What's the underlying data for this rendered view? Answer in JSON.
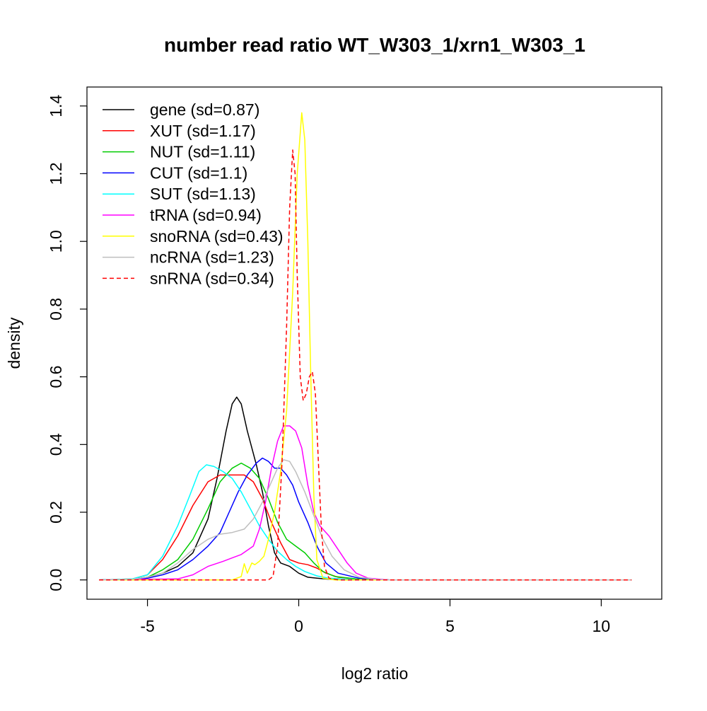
{
  "chart_data": {
    "type": "line",
    "title": "number read ratio WT_W303_1/xrn1_W303_1",
    "xlabel": "log2 ratio",
    "ylabel": "density",
    "xlim": [
      -7,
      12
    ],
    "ylim": [
      -0.057,
      1.456
    ],
    "x_ticks": [
      -5,
      0,
      5,
      10
    ],
    "x_tick_labels": [
      "-5",
      "0",
      "5",
      "10"
    ],
    "y_ticks": [
      0.0,
      0.2,
      0.4,
      0.6,
      0.8,
      1.0,
      1.2,
      1.4
    ],
    "y_tick_labels": [
      "0.0",
      "0.2",
      "0.4",
      "0.6",
      "0.8",
      "1.0",
      "1.2",
      "1.4"
    ],
    "grid": false,
    "legend_position": "top-left",
    "series": [
      {
        "name": "gene (sd=0.87)",
        "color": "#000000",
        "dash": "solid",
        "points": [
          [
            -6.6,
            0
          ],
          [
            -5.5,
            0.002
          ],
          [
            -5,
            0.008
          ],
          [
            -4.5,
            0.02
          ],
          [
            -4,
            0.04
          ],
          [
            -3.5,
            0.08
          ],
          [
            -3,
            0.18
          ],
          [
            -2.7,
            0.3
          ],
          [
            -2.4,
            0.44
          ],
          [
            -2.2,
            0.52
          ],
          [
            -2.05,
            0.54
          ],
          [
            -1.9,
            0.52
          ],
          [
            -1.7,
            0.44
          ],
          [
            -1.4,
            0.34
          ],
          [
            -1.2,
            0.26
          ],
          [
            -1,
            0.16
          ],
          [
            -0.8,
            0.08
          ],
          [
            -0.6,
            0.05
          ],
          [
            -0.3,
            0.04
          ],
          [
            0,
            0.02
          ],
          [
            0.3,
            0.008
          ],
          [
            0.6,
            0.005
          ],
          [
            1,
            0.002
          ],
          [
            1.5,
            0
          ],
          [
            11,
            0
          ]
        ]
      },
      {
        "name": "XUT (sd=1.17)",
        "color": "#ff0000",
        "dash": "solid",
        "points": [
          [
            -6.6,
            0
          ],
          [
            -5.5,
            0.003
          ],
          [
            -5,
            0.015
          ],
          [
            -4.5,
            0.06
          ],
          [
            -4,
            0.13
          ],
          [
            -3.5,
            0.22
          ],
          [
            -3,
            0.29
          ],
          [
            -2.6,
            0.31
          ],
          [
            -2.2,
            0.31
          ],
          [
            -1.8,
            0.31
          ],
          [
            -1.5,
            0.29
          ],
          [
            -1.2,
            0.24
          ],
          [
            -0.9,
            0.17
          ],
          [
            -0.6,
            0.11
          ],
          [
            -0.3,
            0.06
          ],
          [
            0,
            0.05
          ],
          [
            0.3,
            0.045
          ],
          [
            0.6,
            0.035
          ],
          [
            0.9,
            0.02
          ],
          [
            1.3,
            0.008
          ],
          [
            2,
            0.002
          ],
          [
            3,
            0
          ],
          [
            11,
            0
          ]
        ]
      },
      {
        "name": "NUT (sd=1.11)",
        "color": "#00cc00",
        "dash": "solid",
        "points": [
          [
            -6.6,
            0
          ],
          [
            -5.5,
            0.002
          ],
          [
            -5,
            0.008
          ],
          [
            -4.5,
            0.03
          ],
          [
            -4,
            0.06
          ],
          [
            -3.5,
            0.12
          ],
          [
            -3,
            0.21
          ],
          [
            -2.6,
            0.29
          ],
          [
            -2.2,
            0.33
          ],
          [
            -1.9,
            0.345
          ],
          [
            -1.6,
            0.33
          ],
          [
            -1.3,
            0.3
          ],
          [
            -1,
            0.24
          ],
          [
            -0.7,
            0.17
          ],
          [
            -0.4,
            0.12
          ],
          [
            -0.1,
            0.1
          ],
          [
            0.2,
            0.08
          ],
          [
            0.5,
            0.05
          ],
          [
            0.8,
            0.025
          ],
          [
            1.2,
            0.01
          ],
          [
            2,
            0.002
          ],
          [
            3,
            0
          ],
          [
            11,
            0
          ]
        ]
      },
      {
        "name": "CUT (sd=1.1)",
        "color": "#0000ff",
        "dash": "solid",
        "points": [
          [
            -6.6,
            0
          ],
          [
            -5.5,
            0.002
          ],
          [
            -5,
            0.005
          ],
          [
            -4.5,
            0.015
          ],
          [
            -4,
            0.03
          ],
          [
            -3.5,
            0.06
          ],
          [
            -3,
            0.1
          ],
          [
            -2.6,
            0.14
          ],
          [
            -2.3,
            0.2
          ],
          [
            -2,
            0.26
          ],
          [
            -1.7,
            0.31
          ],
          [
            -1.4,
            0.345
          ],
          [
            -1.2,
            0.36
          ],
          [
            -1,
            0.35
          ],
          [
            -0.8,
            0.33
          ],
          [
            -0.6,
            0.33
          ],
          [
            -0.4,
            0.31
          ],
          [
            -0.2,
            0.28
          ],
          [
            0,
            0.23
          ],
          [
            0.3,
            0.17
          ],
          [
            0.6,
            0.1
          ],
          [
            0.9,
            0.05
          ],
          [
            1.3,
            0.02
          ],
          [
            2,
            0.005
          ],
          [
            3,
            0
          ],
          [
            11,
            0
          ]
        ]
      },
      {
        "name": "SUT (sd=1.13)",
        "color": "#00ffff",
        "dash": "solid",
        "points": [
          [
            -6.6,
            0
          ],
          [
            -5.5,
            0.003
          ],
          [
            -5,
            0.015
          ],
          [
            -4.5,
            0.07
          ],
          [
            -4,
            0.16
          ],
          [
            -3.6,
            0.25
          ],
          [
            -3.3,
            0.32
          ],
          [
            -3.05,
            0.34
          ],
          [
            -2.8,
            0.335
          ],
          [
            -2.5,
            0.32
          ],
          [
            -2.2,
            0.3
          ],
          [
            -1.9,
            0.26
          ],
          [
            -1.6,
            0.21
          ],
          [
            -1.3,
            0.16
          ],
          [
            -1,
            0.12
          ],
          [
            -0.7,
            0.085
          ],
          [
            -0.4,
            0.06
          ],
          [
            -0.1,
            0.04
          ],
          [
            0.2,
            0.025
          ],
          [
            0.6,
            0.012
          ],
          [
            1,
            0.005
          ],
          [
            2,
            0
          ],
          [
            11,
            0
          ]
        ]
      },
      {
        "name": "tRNA (sd=0.94)",
        "color": "#ff00ff",
        "dash": "solid",
        "points": [
          [
            -6.6,
            0
          ],
          [
            -4,
            0.003
          ],
          [
            -3.5,
            0.015
          ],
          [
            -3,
            0.04
          ],
          [
            -2.5,
            0.055
          ],
          [
            -2.2,
            0.065
          ],
          [
            -1.9,
            0.075
          ],
          [
            -1.5,
            0.1
          ],
          [
            -1.3,
            0.15
          ],
          [
            -1.1,
            0.23
          ],
          [
            -0.9,
            0.33
          ],
          [
            -0.7,
            0.41
          ],
          [
            -0.5,
            0.455
          ],
          [
            -0.3,
            0.455
          ],
          [
            -0.1,
            0.44
          ],
          [
            0.1,
            0.39
          ],
          [
            0.3,
            0.28
          ],
          [
            0.5,
            0.2
          ],
          [
            0.7,
            0.16
          ],
          [
            1,
            0.13
          ],
          [
            1.3,
            0.09
          ],
          [
            1.6,
            0.05
          ],
          [
            1.9,
            0.02
          ],
          [
            2.3,
            0.005
          ],
          [
            3,
            0
          ],
          [
            11,
            0
          ]
        ]
      },
      {
        "name": "snoRNA (sd=0.43)",
        "color": "#ffff00",
        "dash": "solid",
        "points": [
          [
            -6.6,
            0
          ],
          [
            -2.2,
            0
          ],
          [
            -1.9,
            0.01
          ],
          [
            -1.8,
            0.048
          ],
          [
            -1.7,
            0.02
          ],
          [
            -1.55,
            0.05
          ],
          [
            -1.45,
            0.045
          ],
          [
            -1.3,
            0.055
          ],
          [
            -1.15,
            0.07
          ],
          [
            -1,
            0.12
          ],
          [
            -0.8,
            0.2
          ],
          [
            -0.6,
            0.32
          ],
          [
            -0.4,
            0.5
          ],
          [
            -0.2,
            0.85
          ],
          [
            -0.05,
            1.2
          ],
          [
            0.1,
            1.38
          ],
          [
            0.2,
            1.3
          ],
          [
            0.3,
            1.0
          ],
          [
            0.4,
            0.6
          ],
          [
            0.5,
            0.25
          ],
          [
            0.6,
            0.06
          ],
          [
            0.8,
            0.005
          ],
          [
            1.2,
            0
          ],
          [
            11,
            0
          ]
        ]
      },
      {
        "name": "ncRNA (sd=1.23)",
        "color": "#bebebe",
        "dash": "solid",
        "points": [
          [
            -6.6,
            0
          ],
          [
            -5.5,
            0.002
          ],
          [
            -5,
            0.008
          ],
          [
            -4.5,
            0.02
          ],
          [
            -4,
            0.05
          ],
          [
            -3.5,
            0.09
          ],
          [
            -3,
            0.12
          ],
          [
            -2.6,
            0.135
          ],
          [
            -2.2,
            0.14
          ],
          [
            -1.8,
            0.15
          ],
          [
            -1.5,
            0.18
          ],
          [
            -1.2,
            0.23
          ],
          [
            -0.9,
            0.29
          ],
          [
            -0.7,
            0.33
          ],
          [
            -0.5,
            0.355
          ],
          [
            -0.3,
            0.35
          ],
          [
            -0.1,
            0.32
          ],
          [
            0.2,
            0.26
          ],
          [
            0.5,
            0.19
          ],
          [
            0.8,
            0.12
          ],
          [
            1.1,
            0.07
          ],
          [
            1.5,
            0.03
          ],
          [
            2,
            0.008
          ],
          [
            2.5,
            0.002
          ],
          [
            3,
            0
          ],
          [
            11,
            0
          ]
        ]
      },
      {
        "name": "snRNA (sd=0.34)",
        "color": "#ff0000",
        "dash": "dashed",
        "points": [
          [
            -6.6,
            0
          ],
          [
            -1,
            0
          ],
          [
            -0.85,
            0.01
          ],
          [
            -0.7,
            0.1
          ],
          [
            -0.55,
            0.35
          ],
          [
            -0.4,
            0.75
          ],
          [
            -0.3,
            1.1
          ],
          [
            -0.2,
            1.27
          ],
          [
            -0.12,
            1.2
          ],
          [
            -0.05,
            0.9
          ],
          [
            0.05,
            0.6
          ],
          [
            0.15,
            0.53
          ],
          [
            0.25,
            0.55
          ],
          [
            0.35,
            0.6
          ],
          [
            0.45,
            0.615
          ],
          [
            0.55,
            0.55
          ],
          [
            0.65,
            0.35
          ],
          [
            0.75,
            0.15
          ],
          [
            0.85,
            0.04
          ],
          [
            1,
            0.005
          ],
          [
            1.3,
            0
          ],
          [
            11,
            0
          ]
        ]
      }
    ]
  }
}
